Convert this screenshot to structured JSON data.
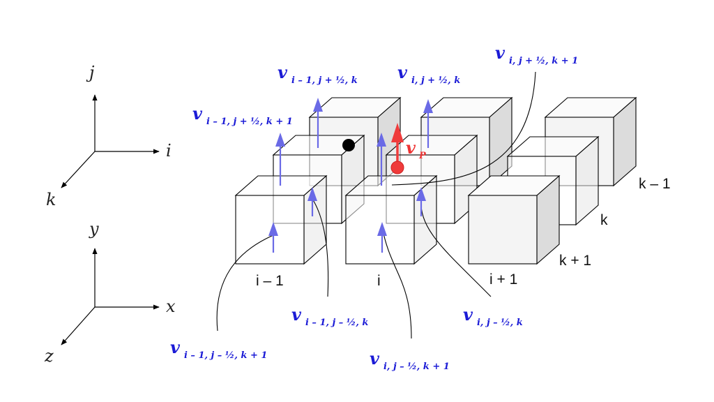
{
  "colors": {
    "velocity": "#1b1bd6",
    "velocity_arrow": "#6a6ae6",
    "particle": "#ef3b3b",
    "particle_text": "#ee3333",
    "ink": "#000000"
  },
  "axes_upper": {
    "vertical": "j",
    "horizontal": "i",
    "depth": "k"
  },
  "axes_lower": {
    "vertical": "y",
    "horizontal": "x",
    "depth": "z"
  },
  "cell_labels": {
    "col_left": "i – 1",
    "col_mid": "i",
    "col_right": "i + 1",
    "depth_back": "k – 1",
    "depth_mid": "k",
    "depth_front": "k + 1"
  },
  "velocity_labels": {
    "v_im1_jph_k": {
      "main": "v",
      "sub": "i – 1, j + ½, k"
    },
    "v_i_jph_k": {
      "main": "v",
      "sub": "i, j + ½, k"
    },
    "v_i_jph_kp1": {
      "main": "v",
      "sub": "i, j + ½, k  + 1"
    },
    "v_im1_jph_kp1": {
      "main": "v",
      "sub": "i – 1, j + ½, k + 1"
    },
    "v_im1_jmh_k": {
      "main": "v",
      "sub": "i – 1, j – ½, k"
    },
    "v_i_jmh_k": {
      "main": "v",
      "sub": "i, j – ½, k"
    },
    "v_im1_jmh_kp1": {
      "main": "v",
      "sub": "i – 1, j – ½, k + 1"
    },
    "v_i_jmh_kp1": {
      "main": "v",
      "sub": "i, j – ½, k  + 1"
    }
  },
  "particle_velocity": {
    "main": "v",
    "sub": "P"
  }
}
